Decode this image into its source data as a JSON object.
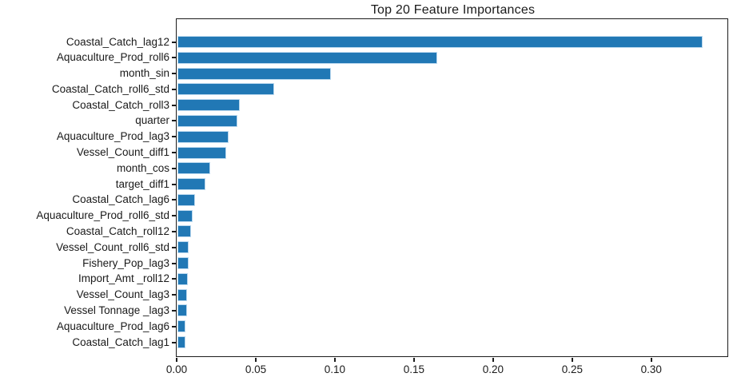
{
  "figure": {
    "background": "#ffffff"
  },
  "chart_data": {
    "type": "bar",
    "orientation": "horizontal",
    "title": "Top 20 Feature Importances",
    "categories": [
      "Coastal_Catch_lag12",
      "Aquaculture_Prod_roll6",
      "month_sin",
      "Coastal_Catch_roll6_std",
      "Coastal_Catch_roll3",
      "quarter",
      "Aquaculture_Prod_lag3",
      "Vessel_Count_diff1",
      "month_cos",
      "target_diff1",
      "Coastal_Catch_lag6",
      "Aquaculture_Prod_roll6_std",
      "Coastal_Catch_roll12",
      "Vessel_Count_roll6_std",
      "Fishery_Pop_lag3",
      "Import_Amt _roll12",
      "Vessel_Count_lag3",
      "Vessel Tonnage _lag3",
      "Aquaculture_Prod_lag6",
      "Coastal_Catch_lag1"
    ],
    "values": [
      0.332,
      0.164,
      0.097,
      0.061,
      0.0395,
      0.038,
      0.0325,
      0.031,
      0.0207,
      0.0177,
      0.0109,
      0.0096,
      0.0084,
      0.0072,
      0.0071,
      0.0067,
      0.0063,
      0.006,
      0.0052,
      0.0051
    ],
    "xlabel": "",
    "ylabel": "",
    "xlim": [
      0,
      0.3486
    ],
    "xticks": [
      0,
      0.05,
      0.1,
      0.15,
      0.2,
      0.25,
      0.3
    ],
    "xtick_labels": [
      "0.00",
      "0.05",
      "0.10",
      "0.15",
      "0.20",
      "0.25",
      "0.30"
    ],
    "grid": false,
    "legend": null,
    "bar_color": "#2178b5",
    "bar_edge_color": "#bcd9ef",
    "axis_color": "#1c1c1c",
    "text_color": "#1a1a1a"
  }
}
